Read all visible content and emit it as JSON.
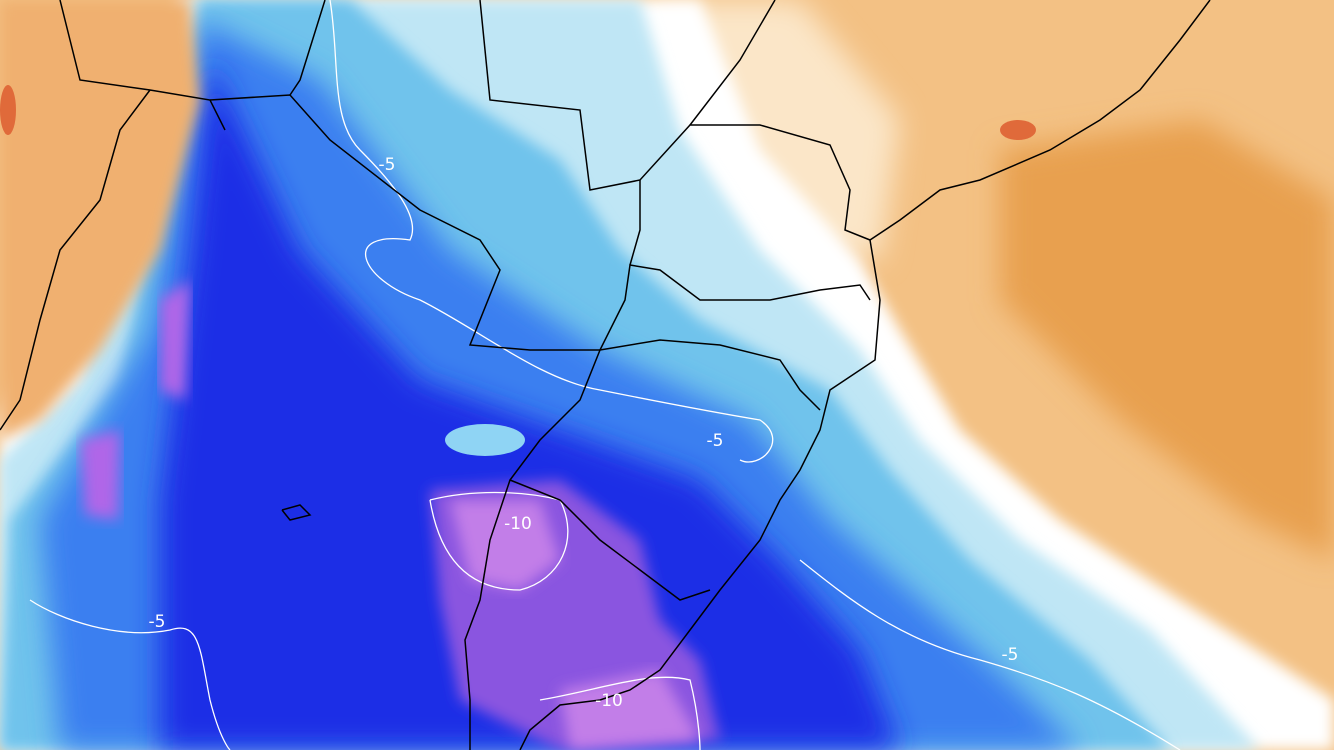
{
  "contour_labels": [
    "-5",
    "-5",
    "-5",
    "-5",
    "-10",
    "-10"
  ]
}
